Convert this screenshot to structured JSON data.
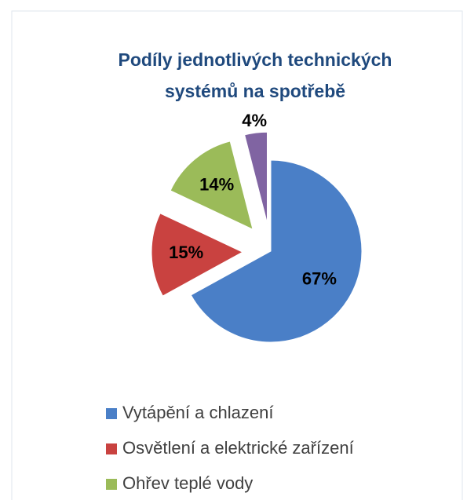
{
  "chart_data": {
    "type": "pie",
    "title": "Podíly jednotlivých technických systémů na spotřebě",
    "categories": [
      "Vytápění a chlazení",
      "Osvětlení a elektrické zařízení",
      "Ohřev teplé vody",
      null
    ],
    "values": [
      67,
      15,
      14,
      4
    ],
    "value_labels": [
      "67%",
      "15%",
      "14%",
      "4%"
    ],
    "colors": [
      "#4a7fc7",
      "#c94240",
      "#9bbb59",
      "#8064a2"
    ]
  }
}
